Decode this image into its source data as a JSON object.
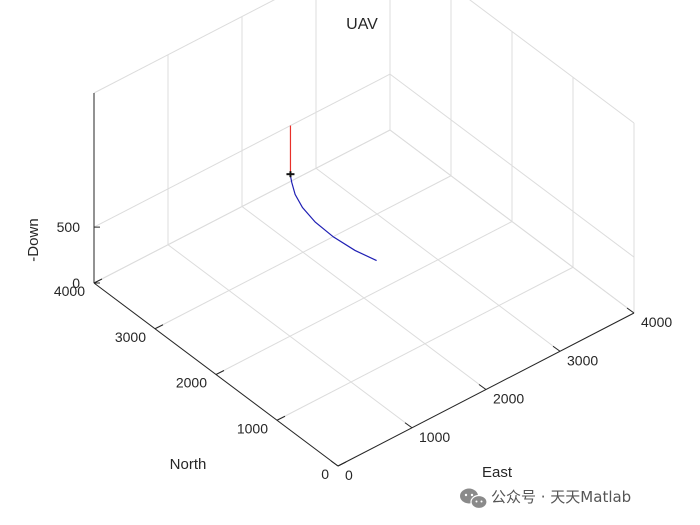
{
  "chart_data": {
    "type": "line",
    "projection": "3d",
    "title": "UAV",
    "xlabel": "East",
    "ylabel": "North",
    "zlabel": "-Down",
    "xlim": [
      0,
      4000
    ],
    "ylim": [
      0,
      4000
    ],
    "zlim": [
      0,
      1700
    ],
    "xticks": [
      "0",
      "1000",
      "2000",
      "3000",
      "4000"
    ],
    "yticks": [
      "0",
      "1000",
      "2000",
      "3000",
      "4000"
    ],
    "zticks": [
      "0",
      "500"
    ],
    "grid": true,
    "series": [
      {
        "color": "#1f1fb4",
        "points": [
          {
            "east": 2500,
            "north": 2400,
            "down": 0
          },
          {
            "east": 2340,
            "north": 2560,
            "down": 80
          },
          {
            "east": 2180,
            "north": 2720,
            "down": 190
          },
          {
            "east": 2050,
            "north": 2860,
            "down": 310
          },
          {
            "east": 1960,
            "north": 2960,
            "down": 430
          },
          {
            "east": 1910,
            "north": 3020,
            "down": 540
          },
          {
            "east": 1890,
            "north": 3050,
            "down": 640
          },
          {
            "east": 1880,
            "north": 3060,
            "down": 700
          }
        ]
      },
      {
        "color": "#e8302a",
        "points": [
          {
            "east": 1880,
            "north": 3060,
            "down": 730
          },
          {
            "east": 1880,
            "north": 3060,
            "down": 1150
          }
        ]
      }
    ],
    "vehicle": {
      "east": 1880,
      "north": 3060,
      "down": 715
    }
  },
  "watermark": {
    "icon": "wechat-icon",
    "text": "公众号 · 天天Matlab"
  }
}
